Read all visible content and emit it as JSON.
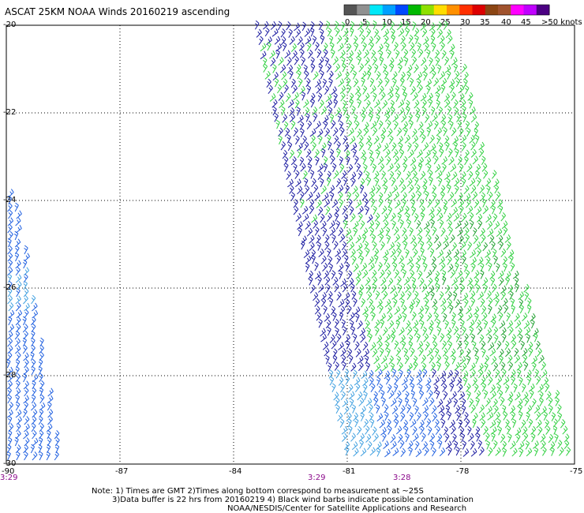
{
  "title": "ASCAT 25KM NOAA Winds 20160219 ascending",
  "legend": {
    "labels": [
      "0",
      "5",
      "10",
      "15",
      "20",
      "25",
      "30",
      "35",
      "40",
      "45",
      ">50 knots"
    ],
    "colors": [
      "#555555",
      "#909090",
      "#00e8f8",
      "#00a0ff",
      "#0048ff",
      "#00b800",
      "#8ee000",
      "#ffdd00",
      "#ff9000",
      "#ff3000",
      "#dd0000",
      "#8b4513",
      "#a0522d",
      "#ff00ff",
      "#c000ff",
      "#4b0082"
    ]
  },
  "axes": {
    "lon_ticks": [
      "-90",
      "-87",
      "-84",
      "-81",
      "-78",
      "-75"
    ],
    "lat_ticks": [
      "-20",
      "-22",
      "-24",
      "-26",
      "-28",
      "-30"
    ]
  },
  "time_labels": [
    {
      "text": "3:29",
      "lon": "-90"
    },
    {
      "text": "3:29",
      "lon": "-81.8"
    },
    {
      "text": "3:28",
      "lon": "-79.5"
    }
  ],
  "notes": [
    "Note: 1) Times are GMT 2)Times along bottom correspond to measurement at ~25S",
    "3)Data buffer is 22 hrs from 20160219 4) Black wind barbs indicate possible contamination",
    "NOAA/NESDIS/Center for Satellite Applications and Research"
  ],
  "barb_colors": {
    "dark_blue": "#1a1aa0",
    "blue": "#2060e0",
    "light_blue": "#40a0e0",
    "green": "#30d040",
    "dark_green": "#20a030"
  }
}
